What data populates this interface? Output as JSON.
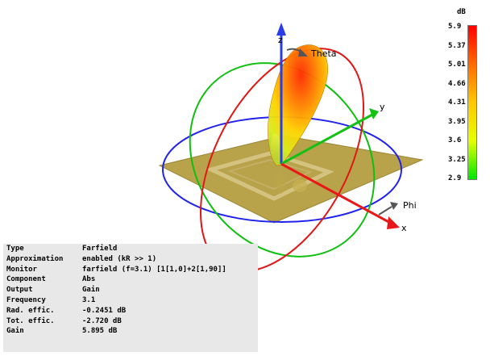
{
  "view": {
    "axes": {
      "x": "x",
      "y": "y",
      "z": "z"
    },
    "labels": {
      "theta": "Theta",
      "phi": "Phi"
    }
  },
  "color_scale": {
    "unit": "dB",
    "ticks": [
      "5.9",
      "5.37",
      "5.01",
      "4.66",
      "4.31",
      "3.95",
      "3.6",
      "3.25",
      "2.9"
    ],
    "colors_top_to_bottom": [
      "#ff0000",
      "#ff6a00",
      "#ffc800",
      "#e6ff00",
      "#00e600"
    ]
  },
  "info": {
    "rows": [
      {
        "key": "Type",
        "value": "Farfield"
      },
      {
        "key": "Approximation",
        "value": "enabled (kR >> 1)"
      },
      {
        "key": "Monitor",
        "value": "farfield (f=3.1) [1[1,0]+2[1,90]]"
      },
      {
        "key": "Component",
        "value": "Abs"
      },
      {
        "key": "Output",
        "value": "Gain"
      },
      {
        "key": "Frequency",
        "value": "3.1"
      },
      {
        "key": "Rad. effic.",
        "value": "-0.2451 dB"
      },
      {
        "key": "Tot. effic.",
        "value": "-2.720 dB"
      },
      {
        "key": "Gain",
        "value": "5.895 dB"
      }
    ]
  }
}
